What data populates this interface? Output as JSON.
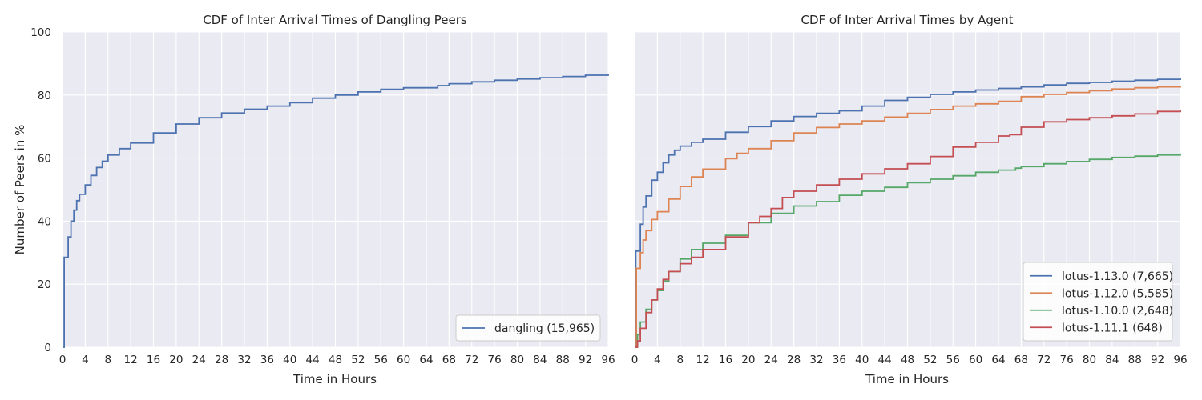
{
  "colors": {
    "background": "#eaeaf2",
    "grid": "#ffffff",
    "text": "#262626",
    "legend_border": "#cccccc",
    "legend_bg": "#ffffff"
  },
  "chart_data": [
    {
      "type": "line",
      "step": true,
      "title": "CDF of Inter Arrival Times of Dangling Peers",
      "xlabel": "Time in Hours",
      "ylabel": "Number of Peers in %",
      "xlim": [
        0,
        96
      ],
      "ylim": [
        0,
        100
      ],
      "xticks": [
        0,
        4,
        8,
        12,
        16,
        20,
        24,
        28,
        32,
        36,
        40,
        44,
        48,
        52,
        56,
        60,
        64,
        68,
        72,
        76,
        80,
        84,
        88,
        92,
        96
      ],
      "yticks": [
        0,
        20,
        40,
        60,
        80,
        100
      ],
      "grid": true,
      "legend_position": "lower-right",
      "series": [
        {
          "name": "dangling (15,965)",
          "color": "#4c72b0",
          "points": [
            [
              0,
              0
            ],
            [
              0.3,
              28.5
            ],
            [
              1,
              35
            ],
            [
              1.5,
              40
            ],
            [
              2,
              43.5
            ],
            [
              2.5,
              46.5
            ],
            [
              3,
              48.5
            ],
            [
              4,
              51.5
            ],
            [
              5,
              54.5
            ],
            [
              6,
              57
            ],
            [
              7,
              59
            ],
            [
              8,
              61
            ],
            [
              10,
              63
            ],
            [
              12,
              64.8
            ],
            [
              16,
              68
            ],
            [
              20,
              70.8
            ],
            [
              24,
              72.8
            ],
            [
              28,
              74.3
            ],
            [
              32,
              75.5
            ],
            [
              36,
              76.5
            ],
            [
              40,
              77.6
            ],
            [
              44,
              79
            ],
            [
              48,
              80
            ],
            [
              52,
              81
            ],
            [
              56,
              81.8
            ],
            [
              60,
              82.3
            ],
            [
              66,
              83
            ],
            [
              68,
              83.6
            ],
            [
              72,
              84.2
            ],
            [
              76,
              84.7
            ],
            [
              80,
              85.1
            ],
            [
              84,
              85.5
            ],
            [
              88,
              85.9
            ],
            [
              92,
              86.3
            ],
            [
              96,
              86.6
            ]
          ]
        }
      ]
    },
    {
      "type": "line",
      "step": true,
      "title": "CDF of Inter Arrival Times by Agent",
      "xlabel": "Time in Hours",
      "ylabel": "",
      "xlim": [
        0,
        96
      ],
      "ylim": [
        0,
        100
      ],
      "xticks": [
        0,
        4,
        8,
        12,
        16,
        20,
        24,
        28,
        32,
        36,
        40,
        44,
        48,
        52,
        56,
        60,
        64,
        68,
        72,
        76,
        80,
        84,
        88,
        92,
        96
      ],
      "yticks": [
        0,
        20,
        40,
        60,
        80,
        100
      ],
      "show_ytick_labels": false,
      "grid": true,
      "legend_position": "lower-right",
      "series": [
        {
          "name": "lotus-1.13.0 (7,665)",
          "color": "#4c72b0",
          "points": [
            [
              0,
              0
            ],
            [
              0.2,
              30.5
            ],
            [
              1,
              39
            ],
            [
              1.5,
              44.5
            ],
            [
              2,
              48
            ],
            [
              3,
              53
            ],
            [
              4,
              55.5
            ],
            [
              5,
              58.5
            ],
            [
              6,
              61
            ],
            [
              7,
              62.5
            ],
            [
              8,
              63.8
            ],
            [
              10,
              65
            ],
            [
              12,
              66
            ],
            [
              16,
              68.2
            ],
            [
              20,
              70
            ],
            [
              24,
              71.8
            ],
            [
              28,
              73.2
            ],
            [
              32,
              74.2
            ],
            [
              36,
              75
            ],
            [
              40,
              76.5
            ],
            [
              44,
              78.3
            ],
            [
              48,
              79.3
            ],
            [
              52,
              80.2
            ],
            [
              56,
              81
            ],
            [
              60,
              81.6
            ],
            [
              64,
              82.1
            ],
            [
              68,
              82.6
            ],
            [
              72,
              83.2
            ],
            [
              76,
              83.7
            ],
            [
              80,
              84
            ],
            [
              84,
              84.4
            ],
            [
              88,
              84.7
            ],
            [
              92,
              85
            ],
            [
              96,
              85.3
            ]
          ]
        },
        {
          "name": "lotus-1.12.0 (5,585)",
          "color": "#dd8452",
          "points": [
            [
              0,
              0
            ],
            [
              0.3,
              25
            ],
            [
              1,
              30
            ],
            [
              1.5,
              34
            ],
            [
              2,
              37
            ],
            [
              3,
              40.5
            ],
            [
              4,
              43
            ],
            [
              6,
              47
            ],
            [
              8,
              51
            ],
            [
              10,
              54
            ],
            [
              12,
              56.5
            ],
            [
              16,
              59.8
            ],
            [
              18,
              61.5
            ],
            [
              20,
              63
            ],
            [
              24,
              65.5
            ],
            [
              28,
              68
            ],
            [
              32,
              69.7
            ],
            [
              36,
              70.8
            ],
            [
              40,
              71.8
            ],
            [
              44,
              73
            ],
            [
              48,
              74.2
            ],
            [
              52,
              75.4
            ],
            [
              56,
              76.5
            ],
            [
              60,
              77.2
            ],
            [
              64,
              78
            ],
            [
              68,
              79.5
            ],
            [
              72,
              80.2
            ],
            [
              76,
              80.8
            ],
            [
              80,
              81.4
            ],
            [
              84,
              81.9
            ],
            [
              88,
              82.3
            ],
            [
              92,
              82.6
            ],
            [
              96,
              82.8
            ]
          ]
        },
        {
          "name": "lotus-1.10.0 (2,648)",
          "color": "#55a868",
          "points": [
            [
              0,
              0
            ],
            [
              0.5,
              4
            ],
            [
              1,
              8
            ],
            [
              2,
              12
            ],
            [
              3,
              15
            ],
            [
              4,
              18
            ],
            [
              5,
              21
            ],
            [
              6,
              24
            ],
            [
              8,
              28
            ],
            [
              10,
              31
            ],
            [
              12,
              33
            ],
            [
              16,
              35.5
            ],
            [
              20,
              39.5
            ],
            [
              24,
              42.5
            ],
            [
              28,
              44.8
            ],
            [
              32,
              46.2
            ],
            [
              36,
              48.2
            ],
            [
              40,
              49.5
            ],
            [
              44,
              50.7
            ],
            [
              48,
              52.2
            ],
            [
              52,
              53.3
            ],
            [
              56,
              54.4
            ],
            [
              60,
              55.5
            ],
            [
              64,
              56.2
            ],
            [
              67,
              56.8
            ],
            [
              68,
              57.3
            ],
            [
              72,
              58.2
            ],
            [
              76,
              58.9
            ],
            [
              80,
              59.6
            ],
            [
              84,
              60.2
            ],
            [
              88,
              60.6
            ],
            [
              92,
              61
            ],
            [
              96,
              61.5
            ]
          ]
        },
        {
          "name": "lotus-1.11.1 (648)",
          "color": "#c44e52",
          "points": [
            [
              0,
              0
            ],
            [
              0.5,
              2
            ],
            [
              1,
              6
            ],
            [
              2,
              11
            ],
            [
              3,
              15
            ],
            [
              4,
              18.5
            ],
            [
              5,
              21.5
            ],
            [
              6,
              24
            ],
            [
              8,
              26.5
            ],
            [
              10,
              28.5
            ],
            [
              12,
              31
            ],
            [
              16,
              35
            ],
            [
              20,
              39.5
            ],
            [
              22,
              41.5
            ],
            [
              24,
              44
            ],
            [
              26,
              47.5
            ],
            [
              28,
              49.5
            ],
            [
              32,
              51.5
            ],
            [
              36,
              53.3
            ],
            [
              40,
              55
            ],
            [
              44,
              56.6
            ],
            [
              48,
              58.2
            ],
            [
              52,
              60.5
            ],
            [
              56,
              63.5
            ],
            [
              60,
              65
            ],
            [
              64,
              67
            ],
            [
              66,
              67.4
            ],
            [
              68,
              69.8
            ],
            [
              72,
              71.5
            ],
            [
              76,
              72.2
            ],
            [
              80,
              72.8
            ],
            [
              84,
              73.4
            ],
            [
              88,
              74
            ],
            [
              92,
              74.8
            ],
            [
              96,
              75.3
            ]
          ]
        }
      ]
    }
  ]
}
